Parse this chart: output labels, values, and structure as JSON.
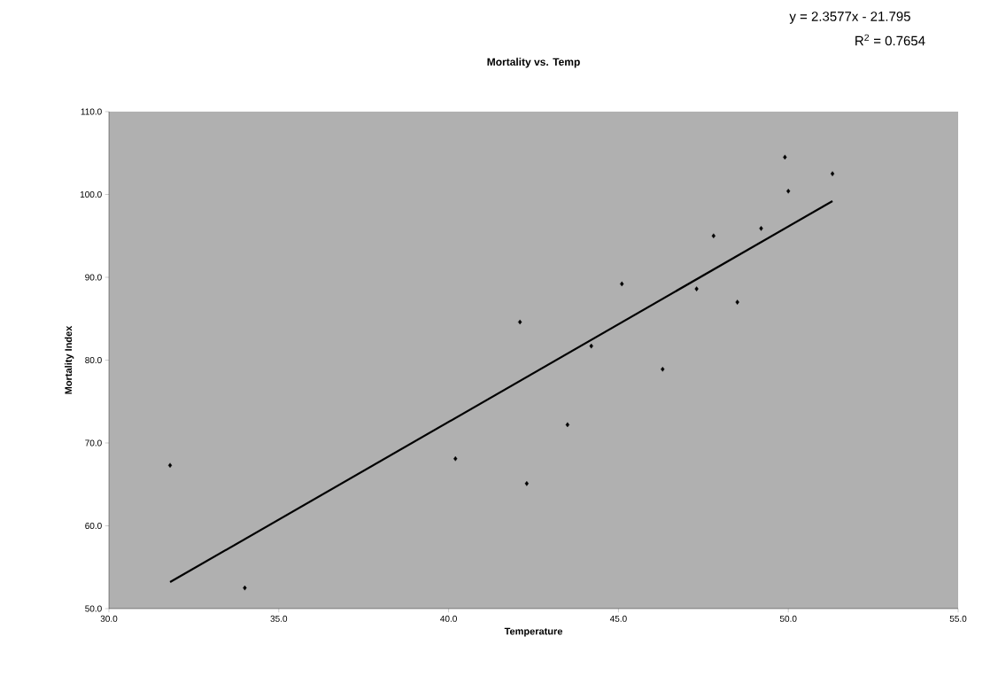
{
  "chart_data": {
    "type": "scatter",
    "title": "Mortality vs. Temp",
    "xlabel": "Temperature",
    "ylabel": "Mortality Index",
    "annotations": [
      "y = 2.3577x - 21.795",
      "R$^{2}$ = 0.7654"
    ],
    "xlim": [
      30,
      55
    ],
    "ylim": [
      50,
      110
    ],
    "xticks": [
      {
        "value": 30,
        "label": "30.0"
      },
      {
        "value": 35,
        "label": "35.0"
      },
      {
        "value": 40,
        "label": "40.0"
      },
      {
        "value": 45,
        "label": "45.0"
      },
      {
        "value": 50,
        "label": "50.0"
      },
      {
        "value": 55,
        "label": "55.0"
      }
    ],
    "yticks": [
      {
        "value": 50,
        "label": "50.0"
      },
      {
        "value": 60,
        "label": "60.0"
      },
      {
        "value": 70,
        "label": "70.0"
      },
      {
        "value": 80,
        "label": "80.0"
      },
      {
        "value": 90,
        "label": "90.0"
      },
      {
        "value": 100,
        "label": "100.0"
      },
      {
        "value": 110,
        "label": "110.0"
      }
    ],
    "series": [
      {
        "marker": "diamond",
        "color": "#000000",
        "x": [
          51.3,
          49.9,
          50.0,
          49.2,
          48.5,
          47.8,
          47.3,
          45.1,
          46.3,
          42.1,
          44.2,
          43.5,
          42.3,
          40.2,
          31.8,
          34.0
        ],
        "values": [
          102.5,
          104.5,
          100.4,
          95.9,
          87.0,
          95.0,
          88.6,
          89.2,
          78.9,
          84.6,
          81.7,
          72.2,
          65.1,
          68.1,
          67.3,
          52.5
        ]
      },
      {
        "type": "line",
        "marker": "none",
        "color": "#000000",
        "x": [
          31.8,
          51.3
        ],
        "values": [
          53.2,
          99.2
        ]
      }
    ]
  }
}
